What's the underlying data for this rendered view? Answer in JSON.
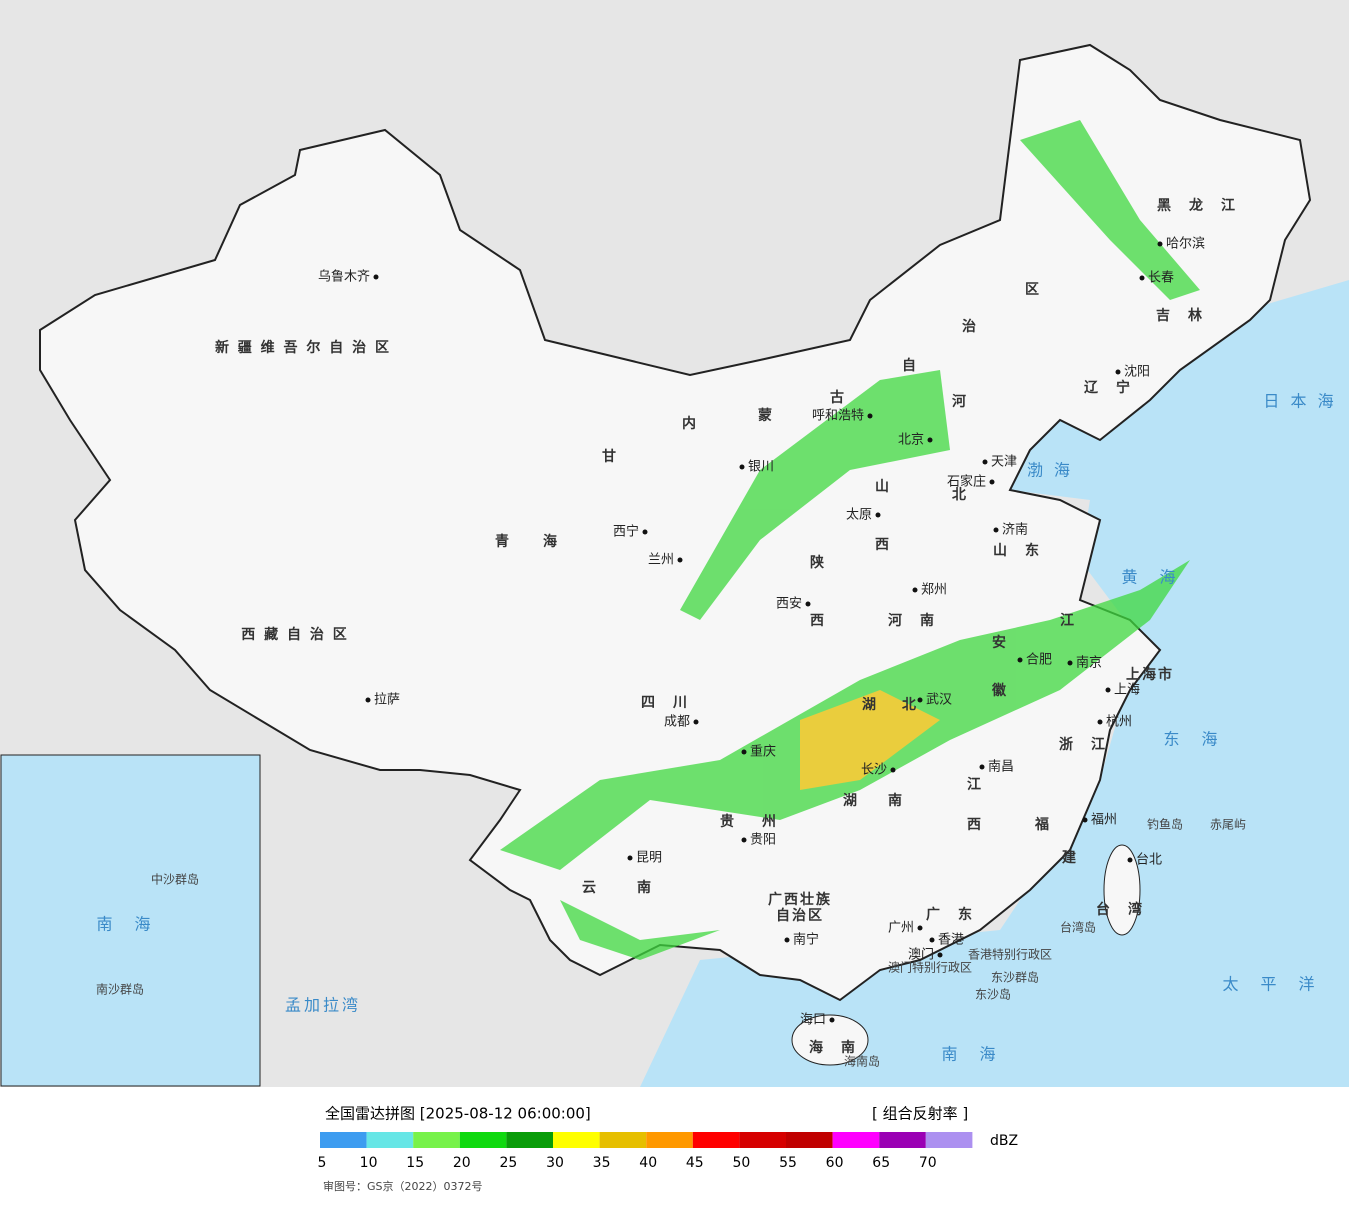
{
  "map": {
    "cities": [
      "乌鲁木齐",
      "拉萨",
      "西宁",
      "兰州",
      "银川",
      "呼和浩特",
      "北京",
      "天津",
      "石家庄",
      "太原",
      "济南",
      "郑州",
      "西安",
      "成都",
      "重庆",
      "武汉",
      "合肥",
      "南京",
      "上海",
      "杭州",
      "长沙",
      "南昌",
      "福州",
      "贵阳",
      "昆明",
      "南宁",
      "广州",
      "香港",
      "澳门",
      "海口",
      "台北",
      "沈阳",
      "长春",
      "哈尔滨"
    ],
    "regions": [
      "新 疆 维 吾 尔 自 治 区",
      "西 藏 自 治 区",
      "青　　海",
      "甘",
      "内",
      "蒙",
      "古",
      "自",
      "治",
      "区",
      "黑　龙　江",
      "吉　林",
      "辽　宁",
      "河",
      "北",
      "山",
      "西",
      "山　东",
      "陕",
      "西",
      "河　南",
      "四　川",
      "湖",
      "北",
      "湖",
      "南",
      "江",
      "西",
      "安",
      "徽",
      "江",
      "浙　江",
      "福",
      "建",
      "广　东",
      "广西壮族",
      "自治区",
      "云",
      "南",
      "贵",
      "州",
      "海　南",
      "台　湾",
      "上海市"
    ],
    "seas": [
      "日 本 海",
      "渤 海",
      "黄　海",
      "东　海",
      "太　平　洋",
      "南　海",
      "孟加拉湾",
      "南　海"
    ],
    "islands": [
      "钓鱼岛",
      "赤尾屿",
      "台湾岛",
      "东沙群岛",
      "东沙岛",
      "海南岛",
      "香港特别行政区",
      "澳门特别行政区",
      "中沙群岛",
      "南沙群岛"
    ]
  },
  "footer": {
    "title": "全国雷达拼图 [2025-08-12 06:00:00]",
    "product": "[ 组合反射率 ]",
    "unit": "dBZ",
    "colors": [
      "#3d9cf0",
      "#66e6e6",
      "#77f24a",
      "#0fd90f",
      "#099c09",
      "#ffff00",
      "#e6bf00",
      "#ff9900",
      "#ff0000",
      "#d60000",
      "#c00000",
      "#ff00ff",
      "#9a00b4",
      "#ac90f0"
    ],
    "ticks": [
      5,
      10,
      15,
      20,
      25,
      30,
      35,
      40,
      45,
      50,
      55,
      60,
      65,
      70
    ],
    "approval": "审图号：GS京（2022）0372号"
  }
}
